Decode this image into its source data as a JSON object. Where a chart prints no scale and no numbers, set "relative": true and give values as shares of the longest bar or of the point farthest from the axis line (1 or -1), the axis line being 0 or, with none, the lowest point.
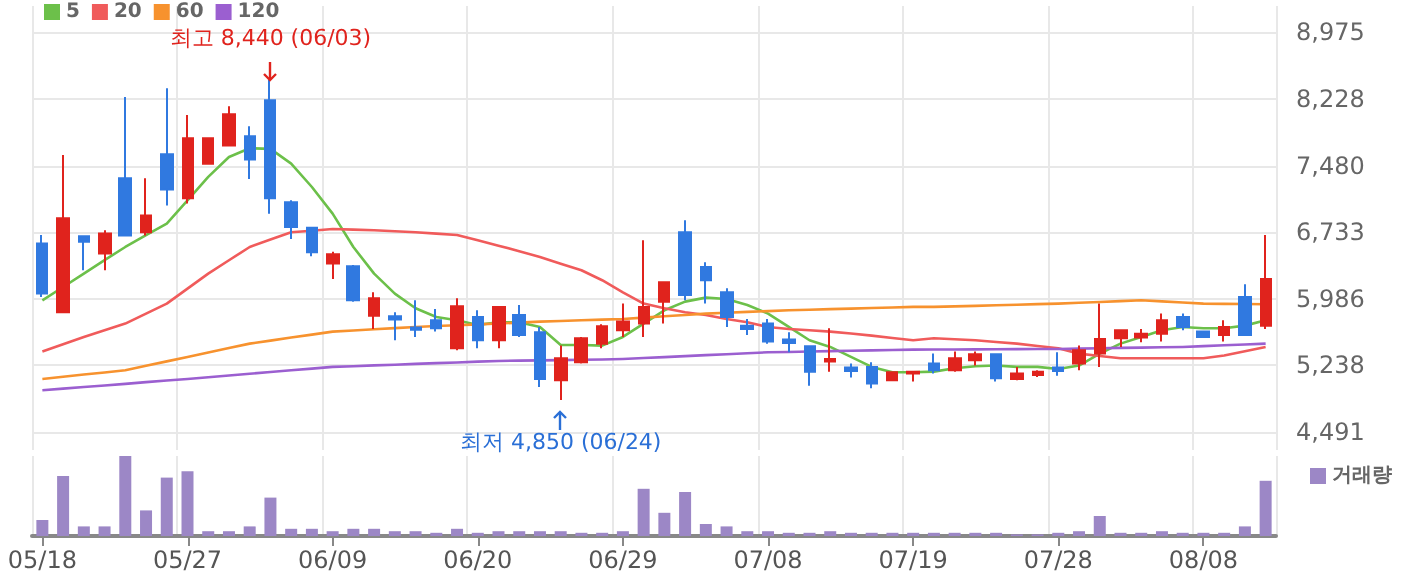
{
  "chart_data": [
    {
      "type": "candlestick",
      "categories": [
        null,
        null,
        null,
        null,
        null,
        null,
        null,
        null,
        null,
        null,
        null,
        null,
        null,
        null,
        null,
        null,
        null,
        null,
        null,
        null,
        null,
        null,
        null,
        null,
        null,
        null,
        null,
        null,
        null,
        null,
        null,
        null,
        null,
        null,
        null,
        null,
        null,
        null,
        null,
        null,
        null,
        null,
        null,
        null,
        null,
        null,
        null,
        null,
        null,
        null,
        null,
        null,
        null,
        null,
        null,
        null,
        null,
        null,
        null,
        null
      ],
      "ohlc": [
        [
          6605,
          6702,
          6007,
          6044
        ],
        [
          5835,
          7599,
          5835,
          6889
        ],
        [
          6687,
          6687,
          6306,
          6627
        ],
        [
          6493,
          6755,
          6306,
          6717
        ],
        [
          7338,
          8250,
          6695,
          6695
        ],
        [
          6732,
          7338,
          6695,
          6919
        ],
        [
          7607,
          8347,
          7031,
          7211
        ],
        [
          7113,
          8048,
          7054,
          7786
        ],
        [
          7502,
          7786,
          7502,
          7786
        ],
        [
          7704,
          8145,
          7704,
          8055
        ],
        [
          7809,
          7921,
          7330,
          7547
        ],
        [
          8212,
          8440,
          6941,
          7113
        ],
        [
          7068,
          7091,
          6657,
          6792
        ],
        [
          6784,
          6792,
          6463,
          6508
        ],
        [
          6381,
          6515,
          6209,
          6485
        ],
        [
          6351,
          6366,
          5954,
          5969
        ],
        [
          5797,
          6059,
          5648,
          5992
        ],
        [
          5790,
          5835,
          5521,
          5753
        ],
        [
          5663,
          5969,
          5558,
          5640
        ],
        [
          5745,
          5872,
          5618,
          5655
        ],
        [
          5431,
          5992,
          5409,
          5902
        ],
        [
          5782,
          5857,
          5431,
          5521
        ],
        [
          5521,
          5895,
          5431,
          5895
        ],
        [
          5805,
          5917,
          5558,
          5581
        ],
        [
          5611,
          5670,
          4997,
          5087
        ],
        [
          5072,
          5461,
          4850,
          5319
        ],
        [
          5274,
          5558,
          5259,
          5543
        ],
        [
          5483,
          5700,
          5431,
          5678
        ],
        [
          5633,
          5932,
          5558,
          5730
        ],
        [
          5708,
          6642,
          5558,
          5895
        ],
        [
          5954,
          6171,
          5708,
          6171
        ],
        [
          6732,
          6867,
          5969,
          6029
        ],
        [
          6343,
          6396,
          5932,
          6194
        ],
        [
          6059,
          6104,
          5670,
          5782
        ],
        [
          5685,
          5760,
          5581,
          5648
        ],
        [
          5708,
          5760,
          5483,
          5506
        ],
        [
          5528,
          5611,
          5386,
          5491
        ],
        [
          5453,
          5453,
          5012,
          5169
        ],
        [
          5282,
          5655,
          5169,
          5311
        ],
        [
          5214,
          5259,
          5102,
          5177
        ],
        [
          5222,
          5274,
          4982,
          5035
        ],
        [
          5072,
          5162,
          5072,
          5162
        ],
        [
          5147,
          5169,
          5057,
          5169
        ],
        [
          5259,
          5371,
          5147,
          5184
        ],
        [
          5184,
          5394,
          5169,
          5319
        ],
        [
          5296,
          5394,
          5237,
          5364
        ],
        [
          5364,
          5364,
          5057,
          5095
        ],
        [
          5087,
          5222,
          5072,
          5147
        ],
        [
          5132,
          5184,
          5110,
          5169
        ],
        [
          5214,
          5386,
          5124,
          5177
        ],
        [
          5259,
          5461,
          5184,
          5409
        ],
        [
          5371,
          5932,
          5222,
          5536
        ],
        [
          5543,
          5633,
          5446,
          5633
        ],
        [
          5551,
          5648,
          5498,
          5595
        ],
        [
          5595,
          5820,
          5506,
          5745
        ],
        [
          5782,
          5820,
          5633,
          5670
        ],
        [
          5618,
          5618,
          5558,
          5558
        ],
        [
          5581,
          5745,
          5506,
          5670
        ],
        [
          6007,
          6149,
          5581,
          5581
        ],
        [
          5685,
          6702,
          5648,
          6209
        ]
      ],
      "colors": [
        "#3079e0",
        "#e0231d",
        "#3079e0",
        "#e0231d",
        "#3079e0",
        "#e0231d",
        "#3079e0",
        "#e0231d",
        "#e0231d",
        "#e0231d",
        "#3079e0",
        "#3079e0",
        "#3079e0",
        "#3079e0",
        "#e0231d",
        "#3079e0",
        "#e0231d",
        "#3079e0",
        "#3079e0",
        "#3079e0",
        "#e0231d",
        "#3079e0",
        "#e0231d",
        "#3079e0",
        "#3079e0",
        "#e0231d",
        "#e0231d",
        "#e0231d",
        "#e0231d",
        "#e0231d",
        "#e0231d",
        "#3079e0",
        "#3079e0",
        "#3079e0",
        "#3079e0",
        "#3079e0",
        "#3079e0",
        "#3079e0",
        "#e0231d",
        "#3079e0",
        "#3079e0",
        "#e0231d",
        "#e0231d",
        "#3079e0",
        "#e0231d",
        "#e0231d",
        "#3079e0",
        "#e0231d",
        "#e0231d",
        "#3079e0",
        "#e0231d",
        "#e0231d",
        "#e0231d",
        "#e0231d",
        "#e0231d",
        "#3079e0",
        "#3079e0",
        "#e0231d",
        "#3079e0",
        "#e0231d"
      ],
      "series": [
        {
          "name": "5",
          "type": "line",
          "color": "#6cc04a",
          "values": [
            5969,
            6118,
            6268,
            6420,
            6567,
            6700,
            6829,
            7091,
            7353,
            7577,
            7674,
            7667,
            7502,
            7240,
            6941,
            6567,
            6268,
            6044,
            5880,
            5782,
            5745,
            5693,
            5723,
            5723,
            5670,
            5468,
            5468,
            5461,
            5558,
            5708,
            5857,
            5954,
            5999,
            5984,
            5917,
            5820,
            5670,
            5521,
            5446,
            5334,
            5222,
            5162,
            5162,
            5169,
            5207,
            5229,
            5237,
            5222,
            5222,
            5199,
            5237,
            5371,
            5483,
            5558,
            5633,
            5670,
            5655,
            5655,
            5685,
            5745
          ]
        },
        {
          "name": "20",
          "type": "line",
          "color": "#f05b5b",
          "values": [
            5394,
            5476,
            5558,
            5633,
            5708,
            5820,
            5932,
            6100,
            6268,
            6418,
            6567,
            6650,
            6732,
            6750,
            6769,
            6762,
            6755,
            6743,
            6732,
            6717,
            6702,
            6642,
            6582,
            6520,
            6455,
            6380,
            6306,
            6194,
            6059,
            5932,
            5880,
            5835,
            5805,
            5760,
            5723,
            5670,
            5648,
            5633,
            5618,
            5596,
            5573,
            5547,
            5521,
            5543,
            5532,
            5521,
            5502,
            5483,
            5457,
            5431,
            5371,
            5345,
            5319,
            5319,
            5319,
            5319,
            5319,
            5349,
            5398,
            5446
          ]
        },
        {
          "name": "60",
          "type": "line",
          "color": "#f7922e",
          "values": [
            5087,
            5111,
            5136,
            5160,
            5184,
            5234,
            5284,
            5334,
            5384,
            5433,
            5483,
            5517,
            5551,
            5584,
            5618,
            5631,
            5644,
            5657,
            5670,
            5680,
            5689,
            5699,
            5708,
            5719,
            5730,
            5737,
            5745,
            5752,
            5760,
            5775,
            5790,
            5805,
            5820,
            5829,
            5839,
            5848,
            5857,
            5863,
            5870,
            5876,
            5882,
            5889,
            5895,
            5895,
            5901,
            5907,
            5914,
            5920,
            5926,
            5932,
            5941,
            5950,
            5960,
            5969,
            5957,
            5944,
            5932,
            5929,
            5927,
            5924
          ]
        },
        {
          "name": "120",
          "type": "line",
          "color": "#9b5fd0",
          "values": [
            4960,
            4978,
            4996,
            5014,
            5032,
            5051,
            5069,
            5087,
            5106,
            5126,
            5145,
            5164,
            5184,
            5203,
            5222,
            5230,
            5239,
            5247,
            5256,
            5264,
            5272,
            5281,
            5289,
            5292,
            5295,
            5298,
            5302,
            5305,
            5311,
            5322,
            5332,
            5343,
            5354,
            5364,
            5375,
            5386,
            5390,
            5394,
            5399,
            5403,
            5407,
            5412,
            5416,
            5417,
            5418,
            5419,
            5420,
            5421,
            5422,
            5423,
            5427,
            5431,
            5435,
            5438,
            5442,
            5446,
            5455,
            5465,
            5474,
            5483
          ]
        }
      ],
      "ylim": [
        4290,
        9270
      ],
      "yticks": [
        {
          "value": 4491,
          "label": "4,491"
        },
        {
          "value": 5238,
          "label": "5,238"
        },
        {
          "value": 5986,
          "label": "5,986"
        },
        {
          "value": 6733,
          "label": "6,733"
        },
        {
          "value": 7480,
          "label": "7,480"
        },
        {
          "value": 8228,
          "label": "8,228"
        },
        {
          "value": 8975,
          "label": "8,975"
        }
      ],
      "grid": true,
      "legend": "top left",
      "marker": "none",
      "line_style": "solid",
      "tick_labels": "y",
      "annotations": [
        "최고 8,440 (06/03)",
        "최저 4,850 (06/24)"
      ]
    },
    {
      "type": "bar",
      "relative": true,
      "categories": [
        "05/18",
        null,
        null,
        null,
        null,
        null,
        null,
        "05/27",
        null,
        null,
        null,
        null,
        null,
        null,
        "06/09",
        null,
        null,
        null,
        null,
        null,
        null,
        "06/20",
        null,
        null,
        null,
        null,
        null,
        null,
        "06/29",
        null,
        null,
        null,
        null,
        null,
        null,
        "07/08",
        null,
        null,
        null,
        null,
        null,
        null,
        "07/19",
        null,
        null,
        null,
        null,
        null,
        null,
        "07/28",
        null,
        null,
        null,
        null,
        null,
        null,
        "08/08",
        null,
        null,
        null
      ],
      "series": [
        {
          "name": "거래량",
          "color": "#9c87c6",
          "values": [
            0.2,
            0.75,
            0.12,
            0.12,
            1,
            0.32,
            0.73,
            0.81,
            0.06,
            0.06,
            0.12,
            0.48,
            0.09,
            0.09,
            0.06,
            0.09,
            0.09,
            0.06,
            0.06,
            0.04,
            0.09,
            0.04,
            0.06,
            0.06,
            0.06,
            0.06,
            0.04,
            0.04,
            0.06,
            0.59,
            0.29,
            0.55,
            0.15,
            0.12,
            0.06,
            0.06,
            0.04,
            0.04,
            0.06,
            0.04,
            0.04,
            0.04,
            0.04,
            0.04,
            0.04,
            0.04,
            0.04,
            0.02,
            0.02,
            0.04,
            0.06,
            0.25,
            0.04,
            0.04,
            0.06,
            0.04,
            0.04,
            0.04,
            0.12,
            0.69
          ]
        }
      ],
      "grid": true,
      "legend": "top right",
      "tick_labels": "x"
    }
  ]
}
